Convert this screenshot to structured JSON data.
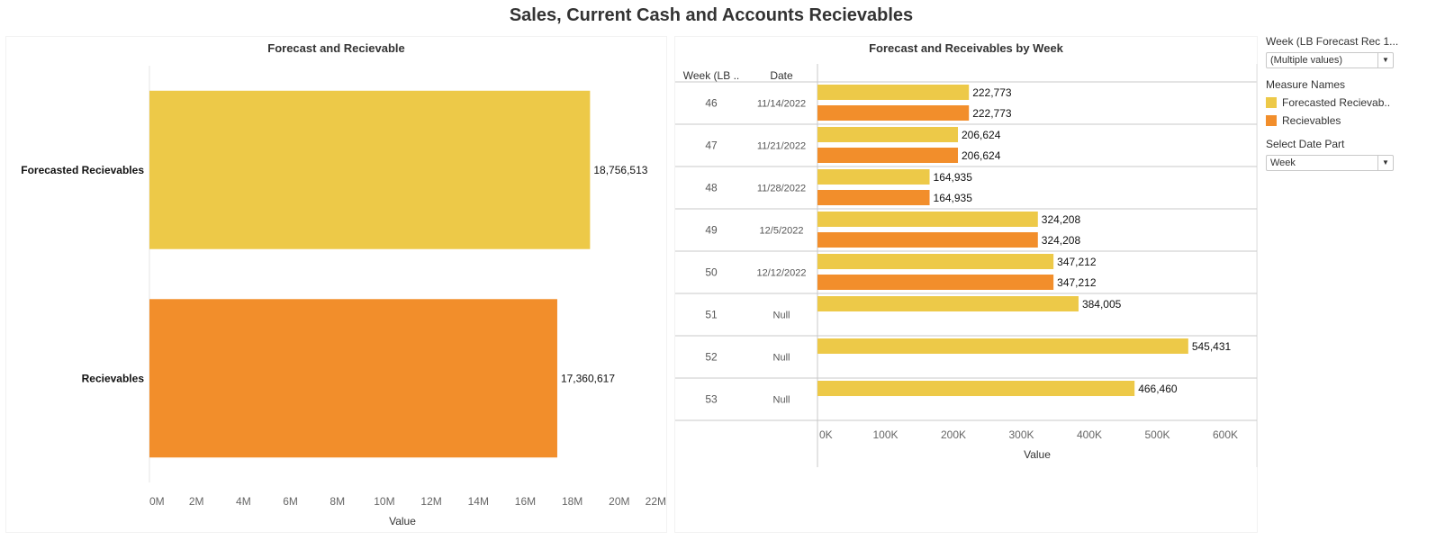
{
  "page": {
    "title": "Sales, Current Cash and Accounts Recievables"
  },
  "colors": {
    "forecasted": "#EDC948",
    "recievables": "#F28E2B"
  },
  "filters": {
    "week_label": "Week (LB Forecast Rec 1...",
    "week_value": "(Multiple values)",
    "measure_names_label": "Measure Names",
    "legend": [
      {
        "label": "Forecasted Recievab..",
        "color": "#EDC948"
      },
      {
        "label": "Recievables",
        "color": "#F28E2B"
      }
    ],
    "date_part_label": "Select Date Part",
    "date_part_value": "Week"
  },
  "chart_data": [
    {
      "type": "bar",
      "orientation": "horizontal",
      "title": "Forecast and Recievable",
      "categories": [
        "Forecasted Recievables",
        "Recievables"
      ],
      "values": [
        18756513,
        17360617
      ],
      "value_labels": [
        "18,756,513",
        "17,360,617"
      ],
      "colors": [
        "#EDC948",
        "#F28E2B"
      ],
      "xlabel": "Value",
      "xlim": [
        0,
        22000000
      ],
      "xticks": [
        0,
        2000000,
        4000000,
        6000000,
        8000000,
        10000000,
        12000000,
        14000000,
        16000000,
        18000000,
        20000000,
        22000000
      ],
      "xtick_labels": [
        "0M",
        "2M",
        "4M",
        "6M",
        "8M",
        "10M",
        "12M",
        "14M",
        "16M",
        "18M",
        "20M",
        "22M"
      ]
    },
    {
      "type": "bar",
      "orientation": "horizontal",
      "title": "Forecast and Receivables by Week",
      "row_headers": [
        "Week (LB ..",
        "Date"
      ],
      "rows": [
        {
          "week": "46",
          "date": "11/14/2022",
          "forecasted": 222773,
          "forecasted_label": "222,773",
          "recievables": 222773,
          "recievables_label": "222,773"
        },
        {
          "week": "47",
          "date": "11/21/2022",
          "forecasted": 206624,
          "forecasted_label": "206,624",
          "recievables": 206624,
          "recievables_label": "206,624"
        },
        {
          "week": "48",
          "date": "11/28/2022",
          "forecasted": 164935,
          "forecasted_label": "164,935",
          "recievables": 164935,
          "recievables_label": "164,935"
        },
        {
          "week": "49",
          "date": "12/5/2022",
          "forecasted": 324208,
          "forecasted_label": "324,208",
          "recievables": 324208,
          "recievables_label": "324,208"
        },
        {
          "week": "50",
          "date": "12/12/2022",
          "forecasted": 347212,
          "forecasted_label": "347,212",
          "recievables": 347212,
          "recievables_label": "347,212"
        },
        {
          "week": "51",
          "date": "Null",
          "forecasted": 384005,
          "forecasted_label": "384,005",
          "recievables": null,
          "recievables_label": ""
        },
        {
          "week": "52",
          "date": "Null",
          "forecasted": 545431,
          "forecasted_label": "545,431",
          "recievables": null,
          "recievables_label": ""
        },
        {
          "week": "53",
          "date": "Null",
          "forecasted": 466460,
          "forecasted_label": "466,460",
          "recievables": null,
          "recievables_label": ""
        }
      ],
      "xlabel": "Value",
      "xlim": [
        0,
        645000
      ],
      "xticks": [
        0,
        100000,
        200000,
        300000,
        400000,
        500000,
        600000
      ],
      "xtick_labels": [
        "0K",
        "100K",
        "200K",
        "300K",
        "400K",
        "500K",
        "600K"
      ]
    }
  ]
}
